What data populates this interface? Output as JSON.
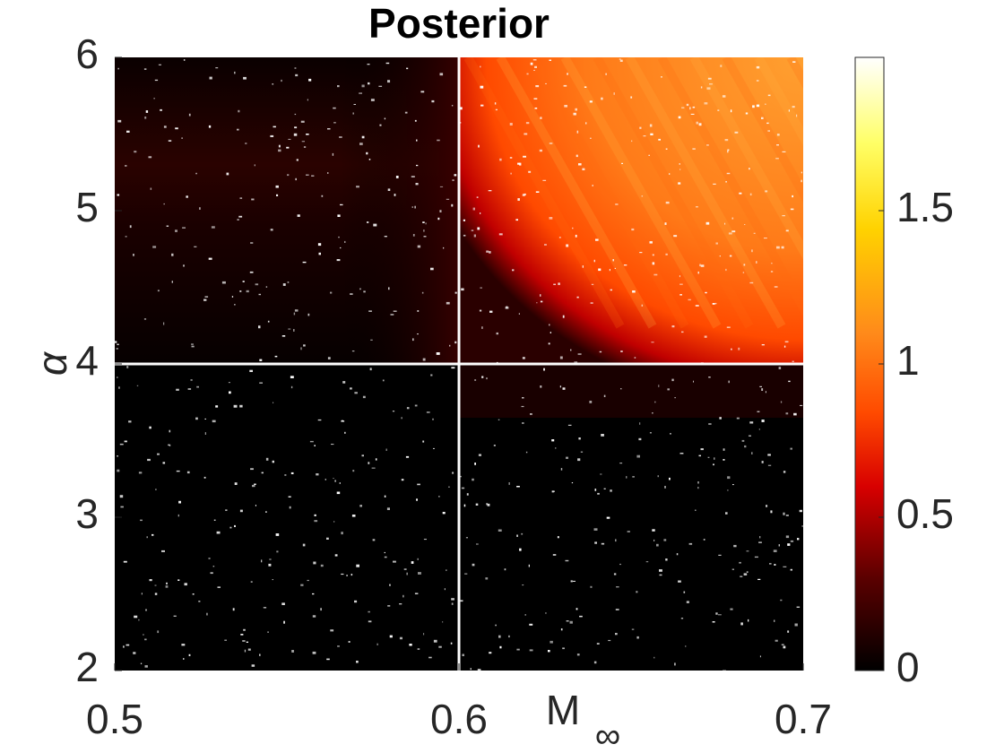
{
  "chart_data": {
    "type": "heatmap",
    "title": "Posterior",
    "xlabel": "M",
    "xlabel_subscript": "∞",
    "ylabel": "α",
    "xlim": [
      0.5,
      0.7
    ],
    "ylim": [
      2,
      6
    ],
    "xticks": [
      0.5,
      0.6,
      0.7
    ],
    "xtick_labels": [
      "0.5",
      "0.6",
      "0.7"
    ],
    "yticks": [
      2,
      3,
      4,
      5,
      6
    ],
    "ytick_labels": [
      "2",
      "3",
      "4",
      "5",
      "6"
    ],
    "colorbar": {
      "colormap": "hot",
      "range": [
        0,
        2
      ],
      "ticks": [
        0,
        0.5,
        1,
        1.5
      ],
      "tick_labels": [
        "0",
        "0.5",
        "1",
        "1.5"
      ],
      "colors": [
        "#000000",
        "#5a0000",
        "#d80000",
        "#ff4a00",
        "#ff8a1a",
        "#ffd200",
        "#ffff66",
        "#ffffff"
      ]
    },
    "reference_lines": {
      "x": 0.6,
      "y": 4,
      "color": "#ffffff"
    },
    "posterior_regions": [
      {
        "region": "M ≥ 0.6, α ≥ 4",
        "value_range": [
          0.6,
          1.2
        ]
      },
      {
        "region": "M < 0.6, α 4.5–5.5",
        "value_range": [
          0.05,
          0.15
        ]
      },
      {
        "region": "M < 0.6 or α < 4",
        "value_range": [
          0,
          0.05
        ]
      }
    ],
    "grid": false
  }
}
